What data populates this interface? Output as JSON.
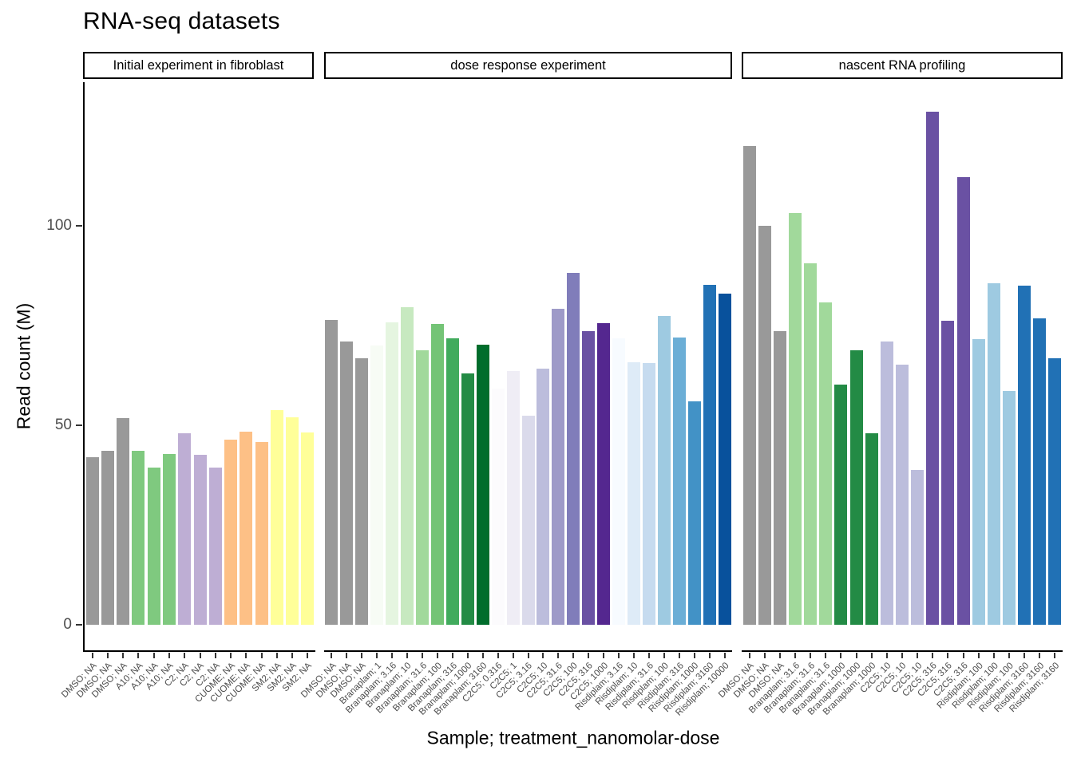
{
  "chart_data": {
    "type": "bar",
    "title": "RNA-seq datasets",
    "xlabel": "Sample; treatment_nanomolar-dose",
    "ylabel": "Read count (M)",
    "ylim": [
      0,
      135
    ],
    "yticks": [
      0,
      50,
      100
    ],
    "grid": "off",
    "legend": "none",
    "axis_color": "#000000",
    "tick_color": "#333333",
    "tick_label_color": "#4d4d4d",
    "facets": [
      {
        "strip": "Initial experiment in fibroblast",
        "bars": [
          {
            "label": "DMSO; NA",
            "value": 42.1,
            "color": "#999999"
          },
          {
            "label": "DMSO; NA",
            "value": 43.7,
            "color": "#999999"
          },
          {
            "label": "DMSO; NA",
            "value": 51.9,
            "color": "#999999"
          },
          {
            "label": "A10; NA",
            "value": 43.6,
            "color": "#7fc97f"
          },
          {
            "label": "A10; NA",
            "value": 39.4,
            "color": "#7fc97f"
          },
          {
            "label": "A10; NA",
            "value": 42.9,
            "color": "#7fc97f"
          },
          {
            "label": "C2; NA",
            "value": 48.1,
            "color": "#beaed4"
          },
          {
            "label": "C2; NA",
            "value": 42.6,
            "color": "#beaed4"
          },
          {
            "label": "C2; NA",
            "value": 39.5,
            "color": "#beaed4"
          },
          {
            "label": "CUOME; NA",
            "value": 46.5,
            "color": "#fdc086"
          },
          {
            "label": "CUOME; NA",
            "value": 48.4,
            "color": "#fdc086"
          },
          {
            "label": "CUOME; NA",
            "value": 45.8,
            "color": "#fdc086"
          },
          {
            "label": "SM2; NA",
            "value": 53.9,
            "color": "#ffff99"
          },
          {
            "label": "SM2; NA",
            "value": 52.1,
            "color": "#ffff99"
          },
          {
            "label": "SM2; NA",
            "value": 48.3,
            "color": "#ffff99"
          }
        ]
      },
      {
        "strip": "dose response experiment",
        "bars": [
          {
            "label": "DMSO; NA",
            "value": 76.4,
            "color": "#999999"
          },
          {
            "label": "DMSO; NA",
            "value": 71.1,
            "color": "#999999"
          },
          {
            "label": "DMSO; NA",
            "value": 66.8,
            "color": "#999999"
          },
          {
            "label": "Branaplam; 1",
            "value": 70.1,
            "color": "#f7fcf5"
          },
          {
            "label": "Branaplam; 3.16",
            "value": 75.8,
            "color": "#e5f5e0"
          },
          {
            "label": "Branaplam; 10",
            "value": 79.6,
            "color": "#c7e9c0"
          },
          {
            "label": "Branaplam; 31.6",
            "value": 68.9,
            "color": "#a1d99b"
          },
          {
            "label": "Branaplam; 100",
            "value": 75.4,
            "color": "#74c476"
          },
          {
            "label": "Branaplam; 316",
            "value": 71.9,
            "color": "#41ab5d"
          },
          {
            "label": "Branaplam; 1000",
            "value": 63.1,
            "color": "#238b45"
          },
          {
            "label": "Branaplam; 3160",
            "value": 70.3,
            "color": "#006d2c"
          },
          {
            "label": "C2C5; 0.316",
            "value": 59.3,
            "color": "#fcfbfd"
          },
          {
            "label": "C2C5; 1",
            "value": 63.7,
            "color": "#efedf5"
          },
          {
            "label": "C2C5; 3.16",
            "value": 52.4,
            "color": "#dadaeb"
          },
          {
            "label": "C2C5; 10",
            "value": 64.3,
            "color": "#bcbddc"
          },
          {
            "label": "C2C5; 31.6",
            "value": 79.3,
            "color": "#9e9ac8"
          },
          {
            "label": "C2C5; 100",
            "value": 88.3,
            "color": "#807dba"
          },
          {
            "label": "C2C5; 316",
            "value": 73.7,
            "color": "#6a51a3"
          },
          {
            "label": "C2C5; 1000",
            "value": 75.6,
            "color": "#54278f"
          },
          {
            "label": "Risdiplam; 3.16",
            "value": 71.8,
            "color": "#f7fbff"
          },
          {
            "label": "Risdiplam; 10",
            "value": 65.8,
            "color": "#deebf7"
          },
          {
            "label": "Risdiplam; 31.6",
            "value": 65.7,
            "color": "#c6dbef"
          },
          {
            "label": "Risdiplam; 100",
            "value": 77.4,
            "color": "#9ecae1"
          },
          {
            "label": "Risdiplam; 316",
            "value": 72.1,
            "color": "#6baed6"
          },
          {
            "label": "Risdiplam; 1000",
            "value": 56.1,
            "color": "#4292c6"
          },
          {
            "label": "Risdiplam; 3160",
            "value": 85.3,
            "color": "#2171b5"
          },
          {
            "label": "Risdiplam; 10000",
            "value": 83.1,
            "color": "#08519c"
          }
        ]
      },
      {
        "strip": "nascent RNA profiling",
        "bars": [
          {
            "label": "DMSO; NA",
            "value": 120.0,
            "color": "#999999"
          },
          {
            "label": "DMSO; NA",
            "value": 100.0,
            "color": "#999999"
          },
          {
            "label": "DMSO; NA",
            "value": 73.6,
            "color": "#999999"
          },
          {
            "label": "Branaplam; 31.6",
            "value": 103.2,
            "color": "#a1d99b"
          },
          {
            "label": "Branaplam; 31.6",
            "value": 90.6,
            "color": "#a1d99b"
          },
          {
            "label": "Branaplam; 31.6",
            "value": 80.8,
            "color": "#a1d99b"
          },
          {
            "label": "Branaplam; 1000",
            "value": 60.3,
            "color": "#238b45"
          },
          {
            "label": "Branaplam; 1000",
            "value": 68.9,
            "color": "#238b45"
          },
          {
            "label": "Branaplam; 1000",
            "value": 48.1,
            "color": "#238b45"
          },
          {
            "label": "C2C5; 10",
            "value": 71.1,
            "color": "#bcbddc"
          },
          {
            "label": "C2C5; 10",
            "value": 65.3,
            "color": "#bcbddc"
          },
          {
            "label": "C2C5; 10",
            "value": 38.9,
            "color": "#bcbddc"
          },
          {
            "label": "C2C5; 316",
            "value": 128.6,
            "color": "#6a51a3"
          },
          {
            "label": "C2C5; 316",
            "value": 76.2,
            "color": "#6a51a3"
          },
          {
            "label": "C2C5; 316",
            "value": 112.2,
            "color": "#6a51a3"
          },
          {
            "label": "Risdiplam; 100",
            "value": 71.6,
            "color": "#9ecae1"
          },
          {
            "label": "Risdiplam; 100",
            "value": 85.6,
            "color": "#9ecae1"
          },
          {
            "label": "Risdiplam; 100",
            "value": 58.6,
            "color": "#9ecae1"
          },
          {
            "label": "Risdiplam; 3160",
            "value": 85.1,
            "color": "#2171b5"
          },
          {
            "label": "Risdiplam; 3160",
            "value": 76.8,
            "color": "#2171b5"
          },
          {
            "label": "Risdiplam; 3160",
            "value": 66.9,
            "color": "#2171b5"
          }
        ]
      }
    ]
  }
}
